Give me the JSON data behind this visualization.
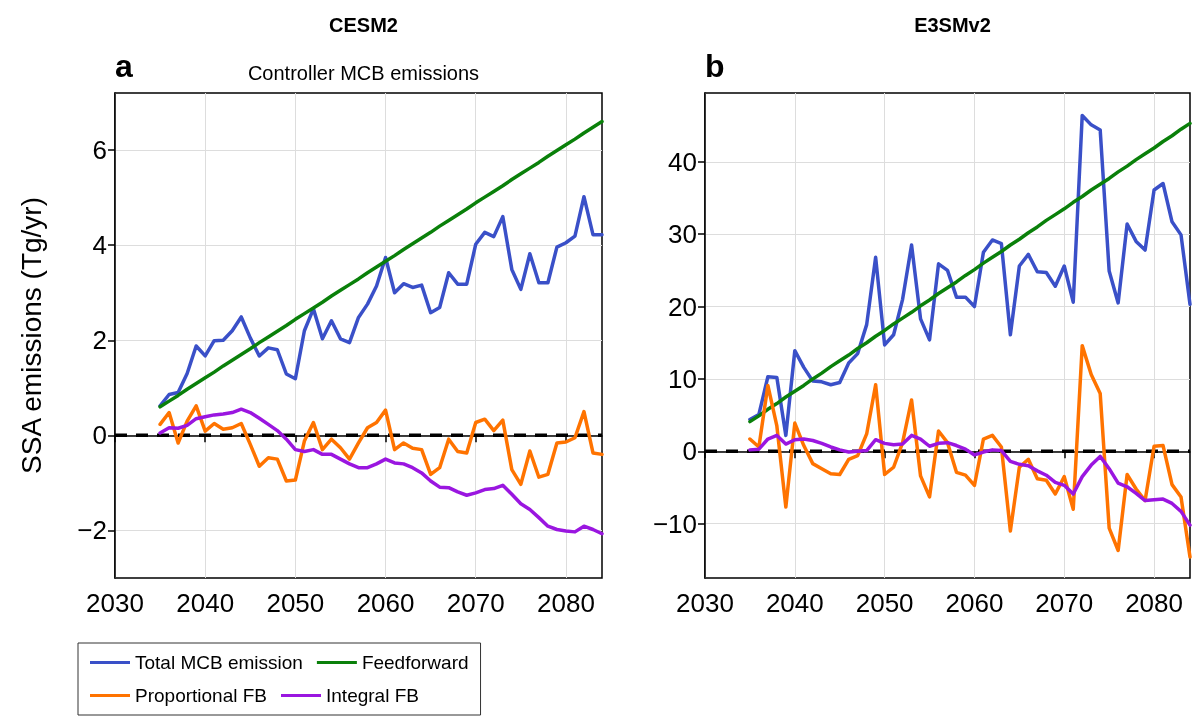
{
  "chart_data": [
    {
      "type": "line",
      "title": "CESM2",
      "subtitle": "Controller MCB emissions",
      "ylabel": "SSA emissions (Tg/yr)",
      "annotations": [
        "a"
      ],
      "x": [
        2035,
        2036,
        2037,
        2038,
        2039,
        2040,
        2041,
        2042,
        2043,
        2044,
        2045,
        2046,
        2047,
        2048,
        2049,
        2050,
        2051,
        2052,
        2053,
        2054,
        2055,
        2056,
        2057,
        2058,
        2059,
        2060,
        2061,
        2062,
        2063,
        2064,
        2065,
        2066,
        2067,
        2068,
        2069,
        2070,
        2071,
        2072,
        2073,
        2074,
        2075,
        2076,
        2077,
        2078,
        2079,
        2080,
        2081,
        2082,
        2083,
        2084
      ],
      "series": [
        {
          "name": "Total MCB emission",
          "color": "#3a50c8",
          "values": [
            0.62,
            0.86,
            0.9,
            1.3,
            1.88,
            1.67,
            1.99,
            2.0,
            2.2,
            2.49,
            2.05,
            1.67,
            1.84,
            1.8,
            1.29,
            1.19,
            2.2,
            2.66,
            2.03,
            2.41,
            2.03,
            1.95,
            2.48,
            2.76,
            3.14,
            3.74,
            3.0,
            3.19,
            3.11,
            3.16,
            2.58,
            2.69,
            3.42,
            3.18,
            3.18,
            4.02,
            4.27,
            4.18,
            4.6,
            3.49,
            3.07,
            3.82,
            3.21,
            3.21,
            3.96,
            4.05,
            4.19,
            5.02,
            4.22,
            4.22
          ]
        },
        {
          "name": "Feedforward",
          "color": "#0a800a",
          "values": [
            0.6,
            0.72,
            0.84,
            0.97,
            1.09,
            1.21,
            1.33,
            1.46,
            1.58,
            1.7,
            1.82,
            1.95,
            2.07,
            2.19,
            2.31,
            2.44,
            2.56,
            2.68,
            2.8,
            2.93,
            3.05,
            3.17,
            3.29,
            3.42,
            3.54,
            3.66,
            3.78,
            3.91,
            4.03,
            4.15,
            4.27,
            4.4,
            4.52,
            4.64,
            4.76,
            4.89,
            5.01,
            5.13,
            5.25,
            5.38,
            5.5,
            5.62,
            5.74,
            5.87,
            5.99,
            6.11,
            6.23,
            6.36,
            6.48,
            6.6
          ]
        },
        {
          "name": "Proportional FB",
          "color": "#ff7300",
          "values": [
            0.23,
            0.48,
            -0.16,
            0.3,
            0.62,
            0.09,
            0.25,
            0.13,
            0.16,
            0.25,
            -0.19,
            -0.65,
            -0.47,
            -0.5,
            -0.96,
            -0.94,
            -0.12,
            0.27,
            -0.3,
            -0.08,
            -0.26,
            -0.5,
            -0.16,
            0.16,
            0.27,
            0.53,
            -0.3,
            -0.16,
            -0.27,
            -0.3,
            -0.82,
            -0.68,
            -0.08,
            -0.34,
            -0.37,
            0.27,
            0.34,
            0.1,
            0.32,
            -0.72,
            -1.03,
            -0.33,
            -0.88,
            -0.82,
            -0.16,
            -0.14,
            -0.05,
            0.5,
            -0.37,
            -0.4
          ]
        },
        {
          "name": "Integral FB",
          "color": "#9a16e0",
          "values": [
            0.05,
            0.16,
            0.15,
            0.21,
            0.35,
            0.39,
            0.43,
            0.45,
            0.48,
            0.55,
            0.48,
            0.36,
            0.23,
            0.1,
            -0.08,
            -0.3,
            -0.34,
            -0.3,
            -0.4,
            -0.4,
            -0.5,
            -0.6,
            -0.68,
            -0.68,
            -0.6,
            -0.5,
            -0.58,
            -0.6,
            -0.68,
            -0.79,
            -0.96,
            -1.09,
            -1.1,
            -1.19,
            -1.26,
            -1.21,
            -1.14,
            -1.12,
            -1.05,
            -1.24,
            -1.44,
            -1.56,
            -1.73,
            -1.91,
            -1.98,
            -2.01,
            -2.03,
            -1.91,
            -1.98,
            -2.07
          ]
        }
      ],
      "ref_lines": [
        {
          "axis": "y",
          "value": 0,
          "color": "#000000",
          "line_style": "dashed"
        }
      ],
      "xlim": [
        2030,
        2084
      ],
      "xticks": [
        2030,
        2040,
        2050,
        2060,
        2070,
        2080
      ],
      "ylim": [
        -3,
        7.2
      ],
      "yticks": [
        -2,
        0,
        2,
        4,
        6
      ],
      "grid": true,
      "legend": "bottom",
      "marker": "none",
      "line_style": "solid"
    },
    {
      "type": "line",
      "title": "E3SMv2",
      "annotations": [
        "b"
      ],
      "x": [
        2035,
        2036,
        2037,
        2038,
        2039,
        2040,
        2041,
        2042,
        2043,
        2044,
        2045,
        2046,
        2047,
        2048,
        2049,
        2050,
        2051,
        2052,
        2053,
        2054,
        2055,
        2056,
        2057,
        2058,
        2059,
        2060,
        2061,
        2062,
        2063,
        2064,
        2065,
        2066,
        2067,
        2068,
        2069,
        2070,
        2071,
        2072,
        2073,
        2074,
        2075,
        2076,
        2077,
        2078,
        2079,
        2080,
        2081,
        2082,
        2083,
        2084
      ],
      "series": [
        {
          "color": "#3a50c8",
          "values": [
            4.4,
            5.1,
            10.3,
            10.2,
            2.2,
            13.9,
            11.6,
            9.7,
            9.6,
            9.2,
            9.5,
            12.2,
            13.5,
            17.5,
            26.8,
            14.7,
            16.1,
            21.0,
            28.5,
            18.3,
            15.4,
            25.9,
            25.0,
            21.3,
            21.3,
            20.0,
            27.5,
            29.2,
            28.7,
            16.1,
            25.6,
            27.2,
            24.8,
            24.7,
            22.8,
            25.6,
            20.6,
            46.4,
            45.1,
            44.4,
            24.9,
            20.5,
            31.4,
            29.0,
            27.8,
            36.1,
            37.0,
            31.7,
            29.9,
            20.3
          ]
        },
        {
          "color": "#0a800a",
          "values": [
            4.1,
            4.9,
            5.8,
            6.6,
            7.5,
            8.3,
            9.1,
            10.0,
            10.8,
            11.7,
            12.5,
            13.3,
            14.2,
            15.0,
            15.9,
            16.7,
            17.6,
            18.4,
            19.2,
            20.1,
            20.9,
            21.8,
            22.6,
            23.4,
            24.3,
            25.1,
            26.0,
            26.8,
            27.6,
            28.5,
            29.3,
            30.2,
            31.0,
            31.9,
            32.7,
            33.5,
            34.4,
            35.2,
            36.1,
            36.9,
            37.7,
            38.6,
            39.4,
            40.3,
            41.1,
            41.9,
            42.8,
            43.6,
            44.5,
            45.3
          ]
        },
        {
          "color": "#ff7300",
          "values": [
            1.7,
            0.6,
            9.1,
            3.5,
            -7.7,
            3.9,
            0.8,
            -1.7,
            -2.4,
            -3.1,
            -3.2,
            -1.1,
            -0.6,
            2.4,
            9.2,
            -3.2,
            -2.2,
            1.2,
            7.1,
            -3.4,
            -6.3,
            2.8,
            1.2,
            -2.9,
            -3.3,
            -4.7,
            1.7,
            2.2,
            0.6,
            -11.0,
            -2.2,
            -1.1,
            -3.8,
            -4.0,
            -5.9,
            -3.5,
            -8.0,
            14.6,
            10.6,
            8.0,
            -10.6,
            -13.7,
            -3.2,
            -5.2,
            -6.8,
            0.7,
            0.8,
            -4.6,
            -6.3,
            -14.6
          ]
        },
        {
          "color": "#9a16e0",
          "values": [
            0.2,
            0.3,
            1.7,
            2.2,
            1.0,
            1.6,
            1.7,
            1.5,
            1.1,
            0.6,
            0.2,
            -0.1,
            0.0,
            0.1,
            1.6,
            1.1,
            0.9,
            1.0,
            2.2,
            1.7,
            0.7,
            1.1,
            1.2,
            0.8,
            0.3,
            -0.5,
            -0.1,
            0.2,
            0.1,
            -1.4,
            -1.8,
            -2.0,
            -2.7,
            -3.3,
            -4.3,
            -4.7,
            -5.9,
            -3.5,
            -1.9,
            -0.7,
            -2.4,
            -4.4,
            -4.9,
            -5.8,
            -6.8,
            -6.7,
            -6.6,
            -7.2,
            -8.3,
            -10.2
          ]
        }
      ],
      "ref_lines": [
        {
          "axis": "y",
          "value": 0,
          "color": "#000000",
          "line_style": "dashed"
        }
      ],
      "xlim": [
        2030,
        2084
      ],
      "xticks": [
        2030,
        2040,
        2050,
        2060,
        2070,
        2080
      ],
      "ylim": [
        -17.5,
        49.5
      ],
      "yticks": [
        -10,
        0,
        10,
        20,
        30,
        40
      ],
      "grid": true,
      "marker": "none",
      "line_style": "solid"
    }
  ]
}
